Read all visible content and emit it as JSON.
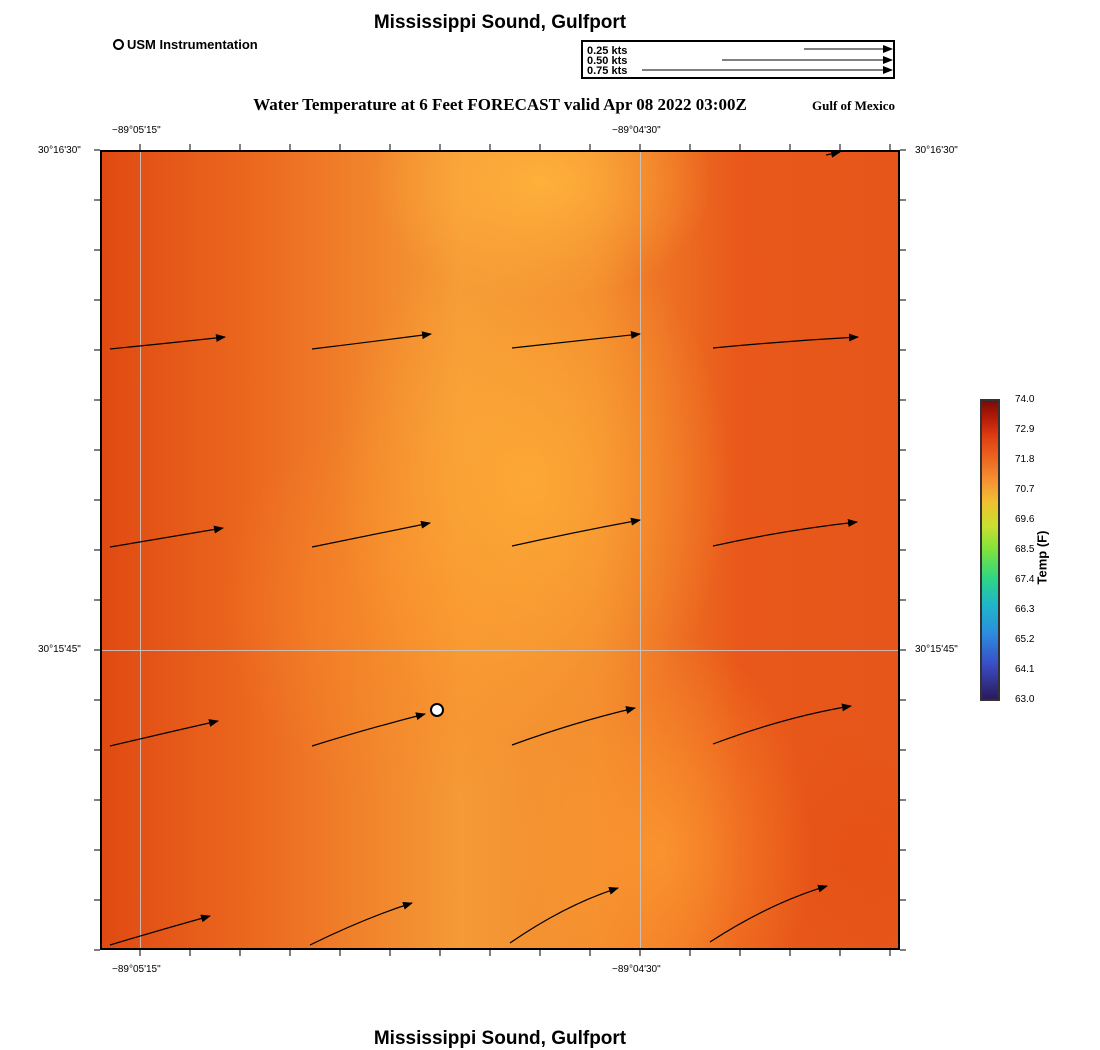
{
  "header": {
    "title": "Mississippi Sound, Gulfport",
    "legend_label": "USM Instrumentation",
    "subtitle": "Water Temperature at 6 Feet FORECAST valid Apr 08 2022 03:00Z",
    "region": "Gulf of Mexico"
  },
  "vector_key": {
    "entries": [
      {
        "label": "0.25 kts",
        "speed_kts": 0.25
      },
      {
        "label": "0.50 kts",
        "speed_kts": 0.5
      },
      {
        "label": "0.75 kts",
        "speed_kts": 0.75
      }
    ]
  },
  "map": {
    "longitude_labels": [
      "−89°05'15\"",
      "−89°04'30\""
    ],
    "latitude_labels": [
      "30°16'30\"",
      "30°15'45\""
    ]
  },
  "colorbar": {
    "title": "Temp (F)",
    "min": 63.0,
    "max": 74.0,
    "ticks": [
      "74.0",
      "72.9",
      "71.8",
      "70.7",
      "69.6",
      "68.5",
      "67.4",
      "66.3",
      "65.2",
      "64.1",
      "63.0"
    ]
  },
  "footer": {
    "title": "Mississippi Sound, Gulfport"
  },
  "colors": {
    "frame": "#000000",
    "grid": "#c8c8c8",
    "station_fill": "#ffffff"
  }
}
